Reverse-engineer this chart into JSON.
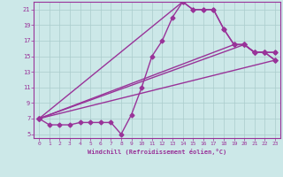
{
  "xlabel": "Windchill (Refroidissement éolien,°C)",
  "bg_color": "#cce8e8",
  "line_color": "#993399",
  "grid_color": "#aacccc",
  "xlim": [
    -0.5,
    23.5
  ],
  "ylim": [
    4.5,
    22.0
  ],
  "xticks": [
    0,
    1,
    2,
    3,
    4,
    5,
    6,
    7,
    8,
    9,
    10,
    11,
    12,
    13,
    14,
    15,
    16,
    17,
    18,
    19,
    20,
    21,
    22,
    23
  ],
  "yticks": [
    5,
    7,
    9,
    11,
    13,
    15,
    17,
    19,
    21
  ],
  "line1_x": [
    0,
    1,
    2,
    3,
    4,
    5,
    6,
    7,
    8,
    9,
    10,
    11,
    12,
    13,
    14,
    15,
    16,
    17,
    18,
    19,
    20,
    21,
    22,
    23
  ],
  "line1_y": [
    7,
    6.2,
    6.2,
    6.2,
    6.5,
    6.5,
    6.5,
    6.5,
    5.0,
    7.5,
    11.0,
    15.0,
    17.0,
    20.0,
    22.0,
    21.0,
    21.0,
    21.0,
    18.5,
    16.5,
    16.5,
    15.5,
    15.5,
    14.5
  ],
  "line2_x": [
    0,
    14,
    15,
    16,
    17,
    18,
    19,
    20,
    21,
    22,
    23
  ],
  "line2_y": [
    7,
    22.0,
    21.0,
    21.0,
    21.0,
    18.5,
    16.5,
    16.5,
    15.5,
    15.5,
    14.5
  ],
  "line3_x": [
    0,
    23
  ],
  "line3_y": [
    7,
    14.5
  ],
  "line4_x": [
    0,
    20,
    21,
    22,
    23
  ],
  "line4_y": [
    7,
    16.5,
    15.5,
    15.5,
    15.5
  ],
  "line5_x": [
    0,
    19,
    20,
    21,
    22,
    23
  ],
  "line5_y": [
    7,
    16.5,
    16.5,
    15.5,
    15.5,
    15.5
  ],
  "marker": "D",
  "markersize": 2.5,
  "linewidth": 1.0
}
